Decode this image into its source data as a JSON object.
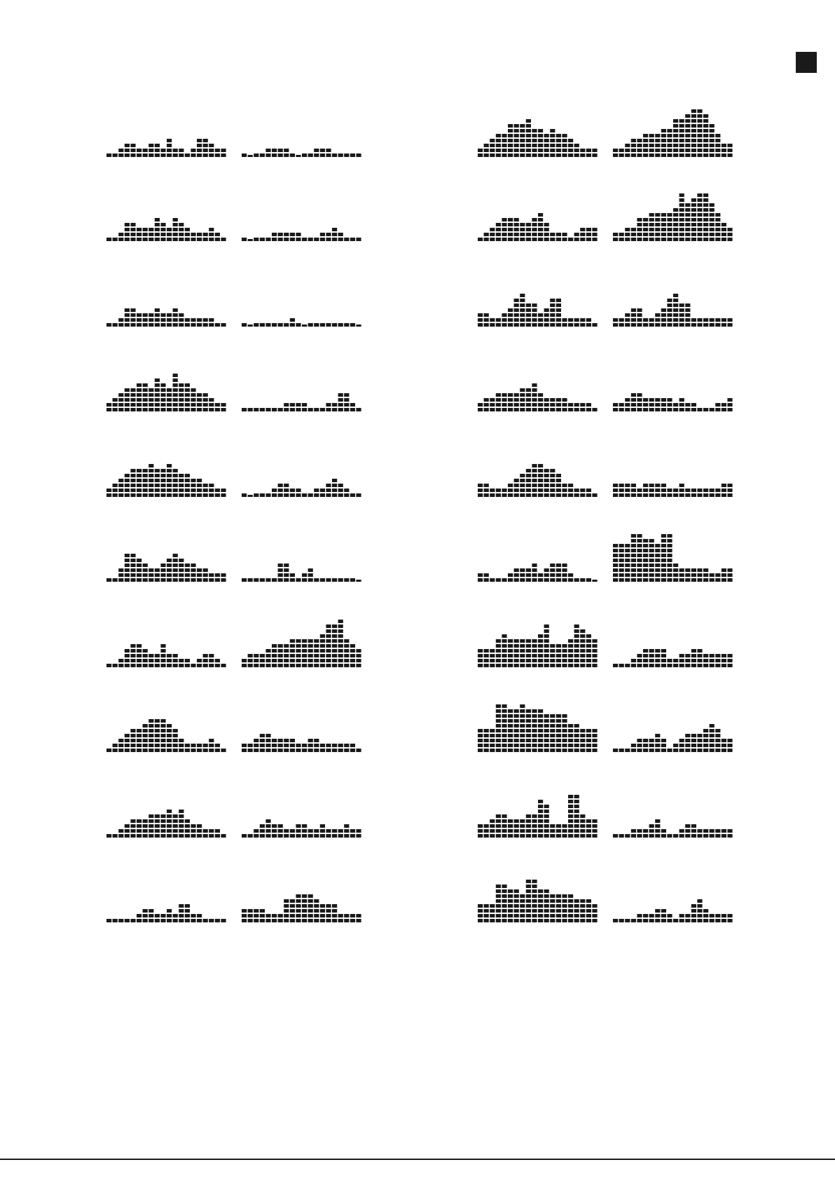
{
  "colors": {
    "ink": "#1a1a1a",
    "paper": "#ffffff"
  },
  "chart_data": [
    {
      "type": "bar",
      "id": "L1A",
      "values": [
        1,
        1,
        2,
        3,
        3,
        2,
        2,
        3,
        3,
        2,
        4,
        2,
        2,
        1,
        2,
        4,
        4,
        3,
        2,
        2
      ],
      "ylim": [
        0,
        10
      ]
    },
    {
      "type": "bar",
      "id": "L1B",
      "values": [
        1,
        0,
        1,
        1,
        2,
        2,
        2,
        2,
        1,
        0,
        1,
        1,
        2,
        2,
        2,
        1,
        1,
        1,
        1,
        1
      ],
      "ylim": [
        0,
        10
      ]
    },
    {
      "type": "bar",
      "id": "L2A",
      "values": [
        1,
        1,
        2,
        4,
        4,
        3,
        3,
        3,
        5,
        4,
        3,
        5,
        4,
        3,
        2,
        2,
        2,
        3,
        2,
        1
      ],
      "ylim": [
        0,
        10
      ]
    },
    {
      "type": "bar",
      "id": "L2B",
      "values": [
        1,
        0,
        1,
        1,
        1,
        2,
        2,
        2,
        2,
        2,
        1,
        1,
        1,
        2,
        2,
        3,
        2,
        1,
        1,
        1
      ],
      "ylim": [
        0,
        10
      ]
    },
    {
      "type": "bar",
      "id": "L3A",
      "values": [
        1,
        1,
        2,
        4,
        4,
        3,
        3,
        3,
        4,
        3,
        3,
        4,
        3,
        2,
        2,
        2,
        2,
        2,
        1,
        1
      ],
      "ylim": [
        0,
        10
      ]
    },
    {
      "type": "bar",
      "id": "L3B",
      "values": [
        1,
        0,
        1,
        1,
        1,
        1,
        1,
        1,
        2,
        1,
        0,
        1,
        1,
        1,
        1,
        1,
        1,
        1,
        1,
        0
      ],
      "ylim": [
        0,
        10
      ]
    },
    {
      "type": "bar",
      "id": "L4A",
      "values": [
        2,
        3,
        4,
        5,
        5,
        6,
        6,
        5,
        7,
        6,
        5,
        8,
        6,
        6,
        5,
        4,
        4,
        3,
        2,
        2
      ],
      "ylim": [
        0,
        10
      ]
    },
    {
      "type": "bar",
      "id": "L4B",
      "values": [
        1,
        1,
        1,
        1,
        1,
        1,
        1,
        2,
        2,
        2,
        2,
        1,
        1,
        1,
        2,
        2,
        4,
        4,
        2,
        1
      ],
      "ylim": [
        0,
        10
      ]
    },
    {
      "type": "bar",
      "id": "L5A",
      "values": [
        2,
        3,
        4,
        5,
        6,
        6,
        6,
        7,
        6,
        6,
        7,
        6,
        5,
        5,
        4,
        4,
        3,
        3,
        2,
        2
      ],
      "ylim": [
        0,
        10
      ]
    },
    {
      "type": "bar",
      "id": "L5B",
      "values": [
        1,
        0,
        1,
        1,
        1,
        2,
        3,
        3,
        2,
        2,
        1,
        1,
        2,
        2,
        3,
        4,
        3,
        2,
        1,
        1
      ],
      "ylim": [
        0,
        10
      ]
    },
    {
      "type": "bar",
      "id": "L6A",
      "values": [
        1,
        1,
        3,
        6,
        6,
        5,
        4,
        3,
        3,
        4,
        5,
        6,
        5,
        4,
        4,
        3,
        3,
        2,
        2,
        2
      ],
      "ylim": [
        0,
        10
      ]
    },
    {
      "type": "bar",
      "id": "L6B",
      "values": [
        1,
        1,
        1,
        1,
        1,
        1,
        4,
        4,
        2,
        1,
        2,
        3,
        1,
        1,
        1,
        1,
        1,
        1,
        1,
        0
      ],
      "ylim": [
        0,
        10
      ]
    },
    {
      "type": "bar",
      "id": "L7A",
      "values": [
        1,
        1,
        2,
        4,
        5,
        5,
        4,
        3,
        3,
        5,
        3,
        3,
        2,
        2,
        1,
        2,
        3,
        3,
        2,
        1
      ],
      "ylim": [
        0,
        10
      ]
    },
    {
      "type": "bar",
      "id": "L7B",
      "values": [
        2,
        3,
        3,
        3,
        4,
        5,
        5,
        5,
        6,
        6,
        6,
        6,
        6,
        7,
        9,
        9,
        10,
        6,
        5,
        4
      ],
      "ylim": [
        0,
        10
      ]
    },
    {
      "type": "bar",
      "id": "L8A",
      "values": [
        1,
        2,
        3,
        4,
        5,
        5,
        6,
        7,
        7,
        7,
        6,
        5,
        3,
        2,
        2,
        2,
        2,
        3,
        2,
        1
      ],
      "ylim": [
        0,
        10
      ]
    },
    {
      "type": "bar",
      "id": "L8B",
      "values": [
        2,
        2,
        3,
        4,
        4,
        3,
        3,
        3,
        3,
        2,
        2,
        3,
        3,
        2,
        2,
        2,
        2,
        2,
        2,
        1
      ],
      "ylim": [
        0,
        10
      ]
    },
    {
      "type": "bar",
      "id": "L9A",
      "values": [
        1,
        1,
        2,
        3,
        4,
        4,
        4,
        5,
        5,
        5,
        6,
        5,
        6,
        4,
        3,
        3,
        2,
        2,
        2,
        1
      ],
      "ylim": [
        0,
        10
      ]
    },
    {
      "type": "bar",
      "id": "L9B",
      "values": [
        1,
        1,
        2,
        3,
        4,
        3,
        3,
        2,
        2,
        3,
        3,
        2,
        2,
        3,
        2,
        2,
        2,
        3,
        2,
        2
      ],
      "ylim": [
        0,
        10
      ]
    },
    {
      "type": "bar",
      "id": "L10A",
      "values": [
        1,
        1,
        1,
        1,
        1,
        2,
        3,
        3,
        2,
        2,
        3,
        2,
        4,
        4,
        2,
        2,
        1,
        1,
        1,
        1
      ],
      "ylim": [
        0,
        10
      ]
    },
    {
      "type": "bar",
      "id": "L10B",
      "values": [
        3,
        3,
        3,
        3,
        2,
        2,
        2,
        5,
        5,
        6,
        6,
        6,
        5,
        4,
        4,
        4,
        2,
        2,
        2,
        2
      ],
      "ylim": [
        0,
        10
      ]
    },
    {
      "type": "bar",
      "id": "R1A",
      "values": [
        2,
        3,
        4,
        5,
        5,
        7,
        7,
        7,
        8,
        6,
        6,
        5,
        6,
        5,
        5,
        4,
        3,
        2,
        2,
        2
      ],
      "ylim": [
        0,
        10
      ]
    },
    {
      "type": "bar",
      "id": "R1B",
      "values": [
        2,
        2,
        3,
        4,
        4,
        5,
        5,
        5,
        6,
        6,
        8,
        8,
        9,
        10,
        10,
        9,
        7,
        5,
        3,
        3
      ],
      "ylim": [
        0,
        10
      ]
    },
    {
      "type": "bar",
      "id": "R2A",
      "values": [
        1,
        2,
        3,
        4,
        5,
        5,
        5,
        4,
        4,
        5,
        6,
        4,
        2,
        2,
        2,
        1,
        2,
        3,
        3,
        3
      ],
      "ylim": [
        0,
        10
      ]
    },
    {
      "type": "bar",
      "id": "R2B",
      "values": [
        2,
        2,
        3,
        3,
        5,
        5,
        6,
        6,
        6,
        6,
        7,
        10,
        8,
        9,
        10,
        10,
        8,
        6,
        4,
        3
      ],
      "ylim": [
        0,
        10
      ]
    },
    {
      "type": "bar",
      "id": "R3A",
      "values": [
        3,
        3,
        2,
        2,
        3,
        4,
        6,
        7,
        5,
        5,
        3,
        4,
        6,
        6,
        2,
        2,
        2,
        2,
        2,
        1
      ],
      "ylim": [
        0,
        10
      ]
    },
    {
      "type": "bar",
      "id": "R3B",
      "values": [
        2,
        2,
        3,
        4,
        4,
        2,
        2,
        3,
        4,
        6,
        7,
        5,
        5,
        2,
        2,
        2,
        2,
        2,
        2,
        2
      ],
      "ylim": [
        0,
        10
      ]
    },
    {
      "type": "bar",
      "id": "R4A",
      "values": [
        2,
        3,
        3,
        4,
        4,
        4,
        4,
        5,
        5,
        6,
        4,
        3,
        3,
        3,
        3,
        2,
        2,
        2,
        2,
        1
      ],
      "ylim": [
        0,
        10
      ]
    },
    {
      "type": "bar",
      "id": "R4B",
      "values": [
        2,
        2,
        3,
        4,
        4,
        3,
        3,
        3,
        3,
        3,
        2,
        3,
        2,
        2,
        1,
        1,
        1,
        2,
        2,
        3
      ],
      "ylim": [
        0,
        10
      ]
    },
    {
      "type": "bar",
      "id": "R5A",
      "values": [
        3,
        3,
        2,
        2,
        2,
        3,
        4,
        5,
        6,
        7,
        7,
        6,
        6,
        5,
        3,
        3,
        2,
        2,
        2,
        1
      ],
      "ylim": [
        0,
        10
      ]
    },
    {
      "type": "bar",
      "id": "R5B",
      "values": [
        3,
        3,
        3,
        3,
        2,
        3,
        3,
        3,
        3,
        2,
        2,
        3,
        2,
        2,
        2,
        2,
        2,
        2,
        3,
        3
      ],
      "ylim": [
        0,
        10
      ]
    },
    {
      "type": "bar",
      "id": "R6A",
      "values": [
        2,
        2,
        1,
        1,
        1,
        2,
        3,
        3,
        3,
        4,
        2,
        3,
        4,
        4,
        4,
        2,
        1,
        1,
        1,
        0
      ],
      "ylim": [
        0,
        10
      ]
    },
    {
      "type": "bar",
      "id": "R6B",
      "values": [
        8,
        8,
        8,
        10,
        10,
        9,
        9,
        8,
        10,
        10,
        4,
        3,
        3,
        3,
        3,
        3,
        2,
        2,
        3,
        3
      ],
      "ylim": [
        0,
        10
      ]
    },
    {
      "type": "bar",
      "id": "R7A",
      "values": [
        4,
        4,
        4,
        6,
        7,
        6,
        6,
        6,
        6,
        6,
        7,
        9,
        5,
        5,
        5,
        6,
        9,
        8,
        7,
        6
      ],
      "ylim": [
        0,
        10
      ]
    },
    {
      "type": "bar",
      "id": "R7B",
      "values": [
        1,
        1,
        1,
        2,
        3,
        4,
        4,
        4,
        4,
        2,
        2,
        3,
        3,
        4,
        4,
        3,
        3,
        3,
        3,
        3
      ],
      "ylim": [
        0,
        10
      ]
    },
    {
      "type": "bar",
      "id": "R8A",
      "values": [
        5,
        5,
        5,
        10,
        10,
        9,
        9,
        10,
        9,
        9,
        9,
        8,
        8,
        8,
        8,
        6,
        6,
        5,
        5,
        5
      ],
      "ylim": [
        0,
        10
      ]
    },
    {
      "type": "bar",
      "id": "R8B",
      "values": [
        1,
        1,
        1,
        2,
        3,
        3,
        3,
        4,
        3,
        1,
        2,
        3,
        4,
        4,
        4,
        5,
        6,
        5,
        3,
        3
      ],
      "ylim": [
        0,
        10
      ]
    },
    {
      "type": "bar",
      "id": "R9A",
      "values": [
        3,
        3,
        4,
        5,
        5,
        4,
        4,
        4,
        5,
        5,
        8,
        7,
        3,
        3,
        3,
        9,
        9,
        5,
        4,
        4
      ],
      "ylim": [
        0,
        10
      ]
    },
    {
      "type": "bar",
      "id": "R9B",
      "values": [
        1,
        1,
        1,
        2,
        2,
        2,
        3,
        4,
        2,
        1,
        1,
        2,
        3,
        3,
        2,
        2,
        2,
        2,
        2,
        2
      ],
      "ylim": [
        0,
        10
      ]
    },
    {
      "type": "bar",
      "id": "R10A",
      "values": [
        4,
        4,
        4,
        8,
        8,
        7,
        7,
        6,
        9,
        9,
        7,
        7,
        6,
        6,
        6,
        6,
        5,
        5,
        5,
        4
      ],
      "ylim": [
        0,
        10
      ]
    },
    {
      "type": "bar",
      "id": "R10B",
      "values": [
        1,
        1,
        1,
        1,
        2,
        2,
        2,
        3,
        3,
        2,
        1,
        2,
        2,
        4,
        5,
        3,
        2,
        2,
        2,
        2
      ],
      "ylim": [
        0,
        10
      ]
    }
  ]
}
